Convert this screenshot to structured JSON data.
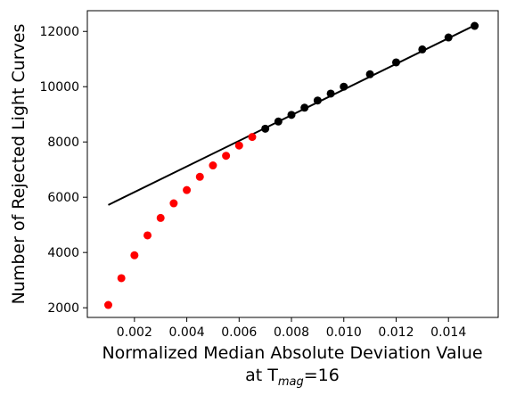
{
  "chart_data": {
    "type": "scatter",
    "xlabel": "Normalized Median Absolute Deviation Value",
    "xlabel_line2_prefix": "at T",
    "xlabel_line2_sub": "mag",
    "xlabel_line2_suffix": "=16",
    "ylabel": "Number of Rejected Light Curves",
    "xlim": [
      0.0002,
      0.0159
    ],
    "ylim": [
      1650,
      12750
    ],
    "x_ticks": [
      0.002,
      0.004,
      0.006,
      0.008,
      0.01,
      0.012,
      0.014
    ],
    "x_tick_labels": [
      "0.002",
      "0.004",
      "0.006",
      "0.008",
      "0.010",
      "0.012",
      "0.014"
    ],
    "y_ticks": [
      2000,
      4000,
      6000,
      8000,
      10000,
      12000
    ],
    "y_tick_labels": [
      "2000",
      "4000",
      "6000",
      "8000",
      "10000",
      "12000"
    ],
    "grid": false,
    "series": [
      {
        "color": "#ff0000",
        "x": [
          0.001,
          0.0015,
          0.002,
          0.0025,
          0.003,
          0.0035,
          0.004,
          0.0045,
          0.005,
          0.0055,
          0.006,
          0.0065
        ],
        "y": [
          2100,
          3070,
          3900,
          4620,
          5250,
          5780,
          6260,
          6740,
          7150,
          7500,
          7870,
          8180
        ]
      },
      {
        "color": "#000000",
        "x": [
          0.007,
          0.0075,
          0.008,
          0.0085,
          0.009,
          0.0095,
          0.01,
          0.011,
          0.012,
          0.013,
          0.014,
          0.015
        ],
        "y": [
          8480,
          8740,
          8980,
          9240,
          9500,
          9750,
          10000,
          10450,
          10880,
          11350,
          11780,
          12200
        ]
      }
    ],
    "fit_line": {
      "color": "#000000",
      "x": [
        0.001,
        0.015
      ],
      "y": [
        5720,
        12220
      ]
    }
  }
}
